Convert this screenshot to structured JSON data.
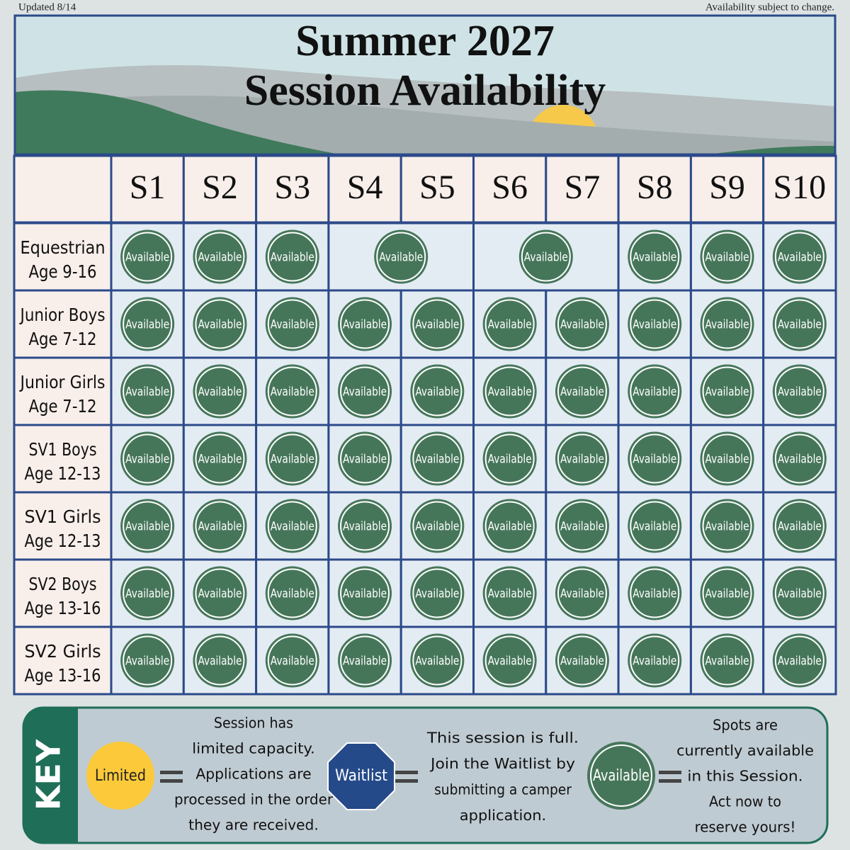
{
  "header": {
    "updated": "Updated 8/14",
    "notice": "Availability subject to change.",
    "title": [
      "Summer 2027",
      "Session Availability"
    ]
  },
  "table": {
    "columns": [
      "S1",
      "S2",
      "S3",
      "S4",
      "S5",
      "S6",
      "S7",
      "S8",
      "S9",
      "S10"
    ],
    "rows": [
      {
        "label": [
          "Equestrian",
          "Age 9-16"
        ],
        "cells": [
          "Available",
          "Available",
          "Available",
          "Available",
          "Available",
          "Available",
          "Available",
          "Available"
        ]
      },
      {
        "label": [
          "Junior Boys",
          "Age 7-12"
        ],
        "cells": [
          "Available",
          "Available",
          "Available",
          "Available",
          "Available",
          "Available",
          "Available",
          "Available",
          "Available",
          "Available"
        ]
      },
      {
        "label": [
          "Junior Girls",
          "Age 7-12"
        ],
        "cells": [
          "Available",
          "Available",
          "Available",
          "Available",
          "Available",
          "Available",
          "Available",
          "Available",
          "Available",
          "Available"
        ]
      },
      {
        "label": [
          "SV1 Boys",
          "Age 12-13"
        ],
        "cells": [
          "Available",
          "Available",
          "Available",
          "Available",
          "Available",
          "Available",
          "Available",
          "Available",
          "Available",
          "Available"
        ]
      },
      {
        "label": [
          "SV1 Girls",
          "Age 12-13"
        ],
        "cells": [
          "Available",
          "Available",
          "Available",
          "Available",
          "Available",
          "Available",
          "Available",
          "Available",
          "Available",
          "Available"
        ]
      },
      {
        "label": [
          "SV2 Boys",
          "Age 13-16"
        ],
        "cells": [
          "Available",
          "Available",
          "Available",
          "Available",
          "Available",
          "Available",
          "Available",
          "Available",
          "Available",
          "Available"
        ]
      },
      {
        "label": [
          "SV2 Girls",
          "Age 13-16"
        ],
        "cells": [
          "Available",
          "Available",
          "Available",
          "Available",
          "Available",
          "Available",
          "Available",
          "Available",
          "Available",
          "Available"
        ]
      }
    ]
  },
  "key": {
    "title": "KEY",
    "items": [
      {
        "badge": "Limited",
        "description": [
          "Session has",
          "limited capacity.",
          "Applications are",
          "processed in the order",
          "they are received."
        ]
      },
      {
        "badge": "Waitlist",
        "description": [
          "This session is full.",
          "Join the Waitlist by",
          "submitting a camper",
          "application."
        ]
      },
      {
        "badge": "Available",
        "description": [
          "Spots are",
          "currently available",
          "in this Session.",
          "Act now to",
          "reserve yours!"
        ]
      }
    ]
  }
}
